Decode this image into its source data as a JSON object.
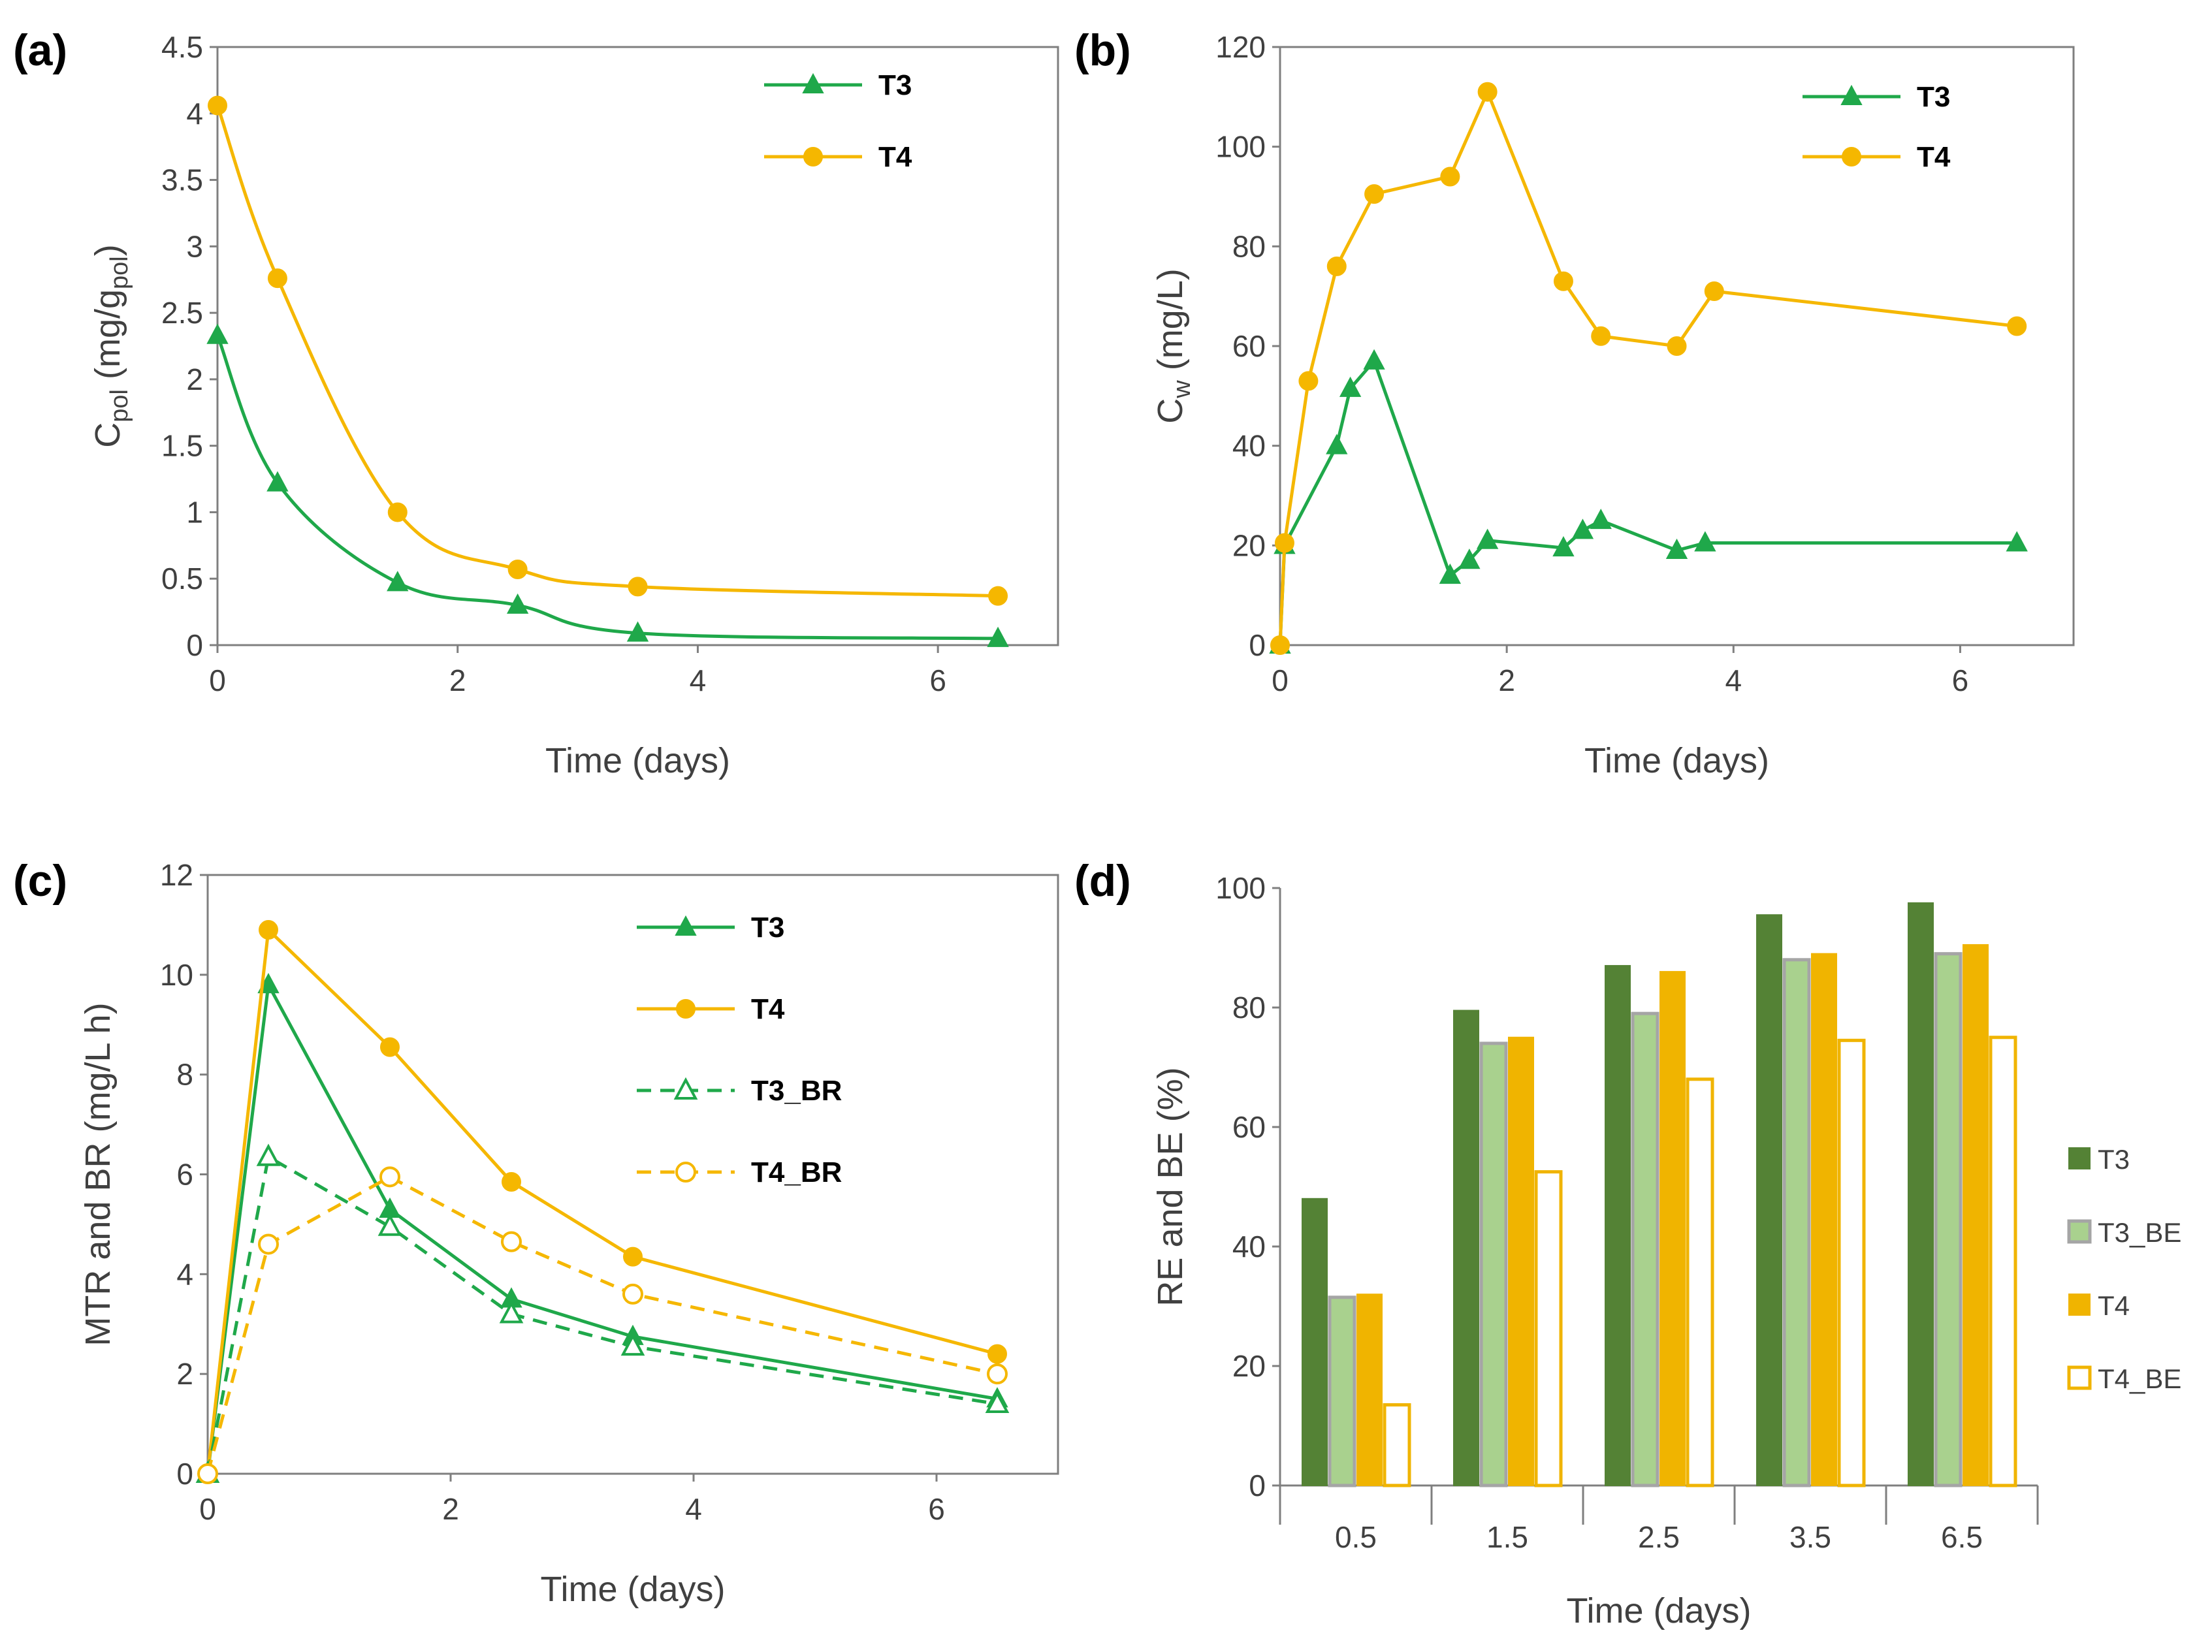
{
  "colors": {
    "green": "#1fa84a",
    "orange": "#f5b700",
    "darkGreen": "#548235",
    "lightGreen": "#a9d18e",
    "bar_orange": "#f0b400",
    "axis": "#7f7f7f"
  },
  "chart_data": [
    {
      "id": "a",
      "label": "(a)",
      "type": "line",
      "xlabel": "Time (days)",
      "ylabel": {
        "main": "C",
        "sub": "pol",
        "rest": " (mg/g",
        "sub2": "pol",
        "end": ")"
      },
      "xlim": [
        0,
        7
      ],
      "ylim": [
        0,
        4.5
      ],
      "xticks": [
        "0",
        "2",
        "4",
        "6"
      ],
      "yticks": [
        "0",
        "0.5",
        "1",
        "1.5",
        "2",
        "2.5",
        "3",
        "3.5",
        "4",
        "4.5"
      ],
      "series": [
        {
          "name": "T3",
          "marker": "triangle",
          "style": "solid",
          "x": [
            0,
            0.5,
            1.5,
            2.5,
            3.5,
            6.5
          ],
          "y": [
            2.33,
            1.22,
            0.47,
            0.3,
            0.09,
            0.05
          ]
        },
        {
          "name": "T4",
          "marker": "circle",
          "style": "solid",
          "x": [
            0,
            0.5,
            1.5,
            2.5,
            3.5,
            6.5
          ],
          "y": [
            4.06,
            2.76,
            1.0,
            0.57,
            0.44,
            0.37
          ]
        }
      ]
    },
    {
      "id": "b",
      "label": "(b)",
      "type": "line",
      "xlabel": "Time (days)",
      "ylabel": {
        "main": "C",
        "sub": "w",
        "rest": " (mg/L)"
      },
      "xlim": [
        0,
        7
      ],
      "ylim": [
        0,
        120
      ],
      "xticks": [
        "0",
        "2",
        "4",
        "6"
      ],
      "yticks": [
        "0",
        "20",
        "40",
        "60",
        "80",
        "100",
        "120"
      ],
      "series": [
        {
          "name": "T3",
          "marker": "triangle",
          "style": "solid",
          "x": [
            0,
            0.04,
            0.5,
            0.62,
            0.83,
            1.5,
            1.67,
            1.83,
            2.5,
            2.67,
            2.83,
            3.5,
            3.75,
            6.5
          ],
          "y": [
            0,
            20,
            40,
            51.5,
            57,
            14,
            17,
            21,
            19.5,
            23,
            25,
            19,
            20.5,
            20.5
          ]
        },
        {
          "name": "T4",
          "marker": "circle",
          "style": "solid",
          "x": [
            0,
            0.04,
            0.25,
            0.5,
            0.83,
            1.5,
            1.83,
            2.5,
            2.83,
            3.5,
            3.83,
            6.5
          ],
          "y": [
            0,
            20.5,
            53,
            76,
            90.5,
            94,
            111,
            73,
            62,
            60,
            71,
            64
          ]
        }
      ]
    },
    {
      "id": "c",
      "label": "(c)",
      "type": "line",
      "xlabel": "Time (days)",
      "ylabel": {
        "main": "MTR and BR (mg/L h)"
      },
      "xlim": [
        0,
        7
      ],
      "ylim": [
        0,
        12
      ],
      "xticks": [
        "0",
        "2",
        "4",
        "6"
      ],
      "yticks": [
        "0",
        "2",
        "4",
        "6",
        "8",
        "10",
        "12"
      ],
      "series": [
        {
          "name": "T3",
          "marker": "triangle",
          "style": "solid",
          "x": [
            0,
            0.5,
            1.5,
            2.5,
            3.5,
            6.5
          ],
          "y": [
            0,
            9.8,
            5.3,
            3.5,
            2.75,
            1.5
          ]
        },
        {
          "name": "T4",
          "marker": "circle",
          "style": "solid",
          "x": [
            0,
            0.5,
            1.5,
            2.5,
            3.5,
            6.5
          ],
          "y": [
            0,
            10.9,
            8.55,
            5.85,
            4.35,
            2.4
          ]
        },
        {
          "name": "T3_BR",
          "marker": "triangle-open",
          "style": "dashed",
          "x": [
            0,
            0.5,
            1.5,
            2.5,
            3.5,
            6.5
          ],
          "y": [
            0,
            6.35,
            4.95,
            3.2,
            2.55,
            1.4
          ]
        },
        {
          "name": "T4_BR",
          "marker": "circle-open",
          "style": "dashed",
          "x": [
            0,
            0.5,
            1.5,
            2.5,
            3.5,
            6.5
          ],
          "y": [
            0,
            4.6,
            5.95,
            4.65,
            3.6,
            2.0
          ]
        }
      ]
    },
    {
      "id": "d",
      "label": "(d)",
      "type": "bar",
      "xlabel": "Time (days)",
      "ylabel": {
        "main": "RE and BE (%)"
      },
      "ylim": [
        0,
        100
      ],
      "yticks": [
        "0",
        "20",
        "40",
        "60",
        "80",
        "100"
      ],
      "categories": [
        "0.5",
        "1.5",
        "2.5",
        "3.5",
        "6.5"
      ],
      "series": [
        {
          "name": "T3",
          "values": [
            48,
            79.5,
            87,
            95.5,
            97.5
          ]
        },
        {
          "name": "T3_BE",
          "values": [
            31.5,
            74,
            79,
            88,
            89
          ]
        },
        {
          "name": "T4",
          "values": [
            32,
            75,
            86,
            89,
            90.5
          ]
        },
        {
          "name": "T4_BE",
          "values": [
            13.5,
            52.5,
            68,
            74.5,
            75
          ]
        }
      ]
    }
  ]
}
